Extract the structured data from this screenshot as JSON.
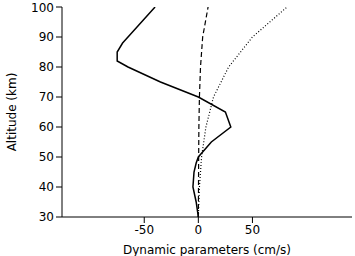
{
  "chart_data": {
    "type": "line",
    "xlabel": "Dynamic parameters (cm/s)",
    "ylabel": "Altitude (km)",
    "xlim": [
      -126,
      142
    ],
    "xticks": [
      -50,
      0,
      50
    ],
    "ylim": [
      30,
      100
    ],
    "yticks": [
      30,
      40,
      50,
      60,
      70,
      80,
      90,
      100
    ],
    "grid": false,
    "series": [
      {
        "color": "#000000",
        "line_style": "solid",
        "x": [
          0,
          -2,
          -5,
          -4,
          -2,
          0,
          12,
          30,
          25,
          0,
          -35,
          -65,
          -75,
          -75,
          -70,
          -60,
          -50,
          -40
        ],
        "y": [
          30,
          35,
          40,
          45,
          48,
          50,
          55,
          60,
          65,
          70,
          75,
          80,
          82,
          85,
          88,
          92,
          96,
          100
        ]
      },
      {
        "color": "#000000",
        "line_style": "dashed",
        "x": [
          0,
          0.3,
          0.5,
          1,
          2,
          4,
          9
        ],
        "y": [
          30,
          50,
          60,
          70,
          80,
          90,
          100
        ]
      },
      {
        "color": "#000000",
        "line_style": "dotted",
        "x": [
          0,
          1,
          3,
          7,
          14,
          28,
          50,
          82
        ],
        "y": [
          30,
          40,
          50,
          60,
          70,
          80,
          90,
          100
        ]
      }
    ]
  }
}
